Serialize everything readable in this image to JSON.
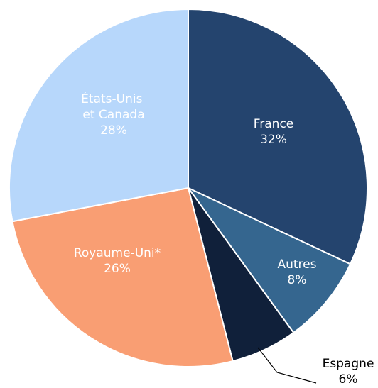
{
  "chart_data": {
    "type": "pie",
    "categories": [
      "France",
      "Autres",
      "Espagne",
      "Royaume-Uni*",
      "États-Unis et Canada"
    ],
    "values": [
      32,
      8,
      6,
      26,
      28
    ],
    "value_labels": [
      "32%",
      "8%",
      "6%",
      "26%",
      "28%"
    ],
    "colors": [
      "#24446e",
      "#35668f",
      "#10203a",
      "#f99e73",
      "#b7d7fb"
    ]
  }
}
